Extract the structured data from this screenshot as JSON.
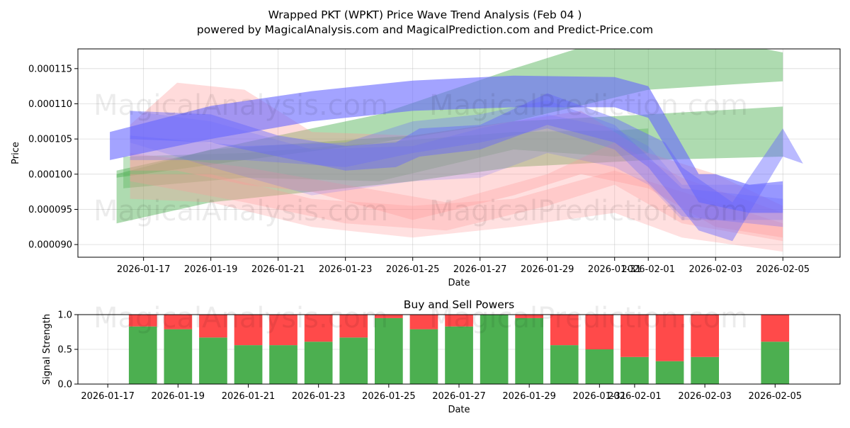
{
  "title_line1": "Wrapped PKT (WPKT) Price Wave Trend Analysis (Feb 04 )",
  "title_line2": "powered by MagicalAnalysis.com and MagicalPrediction.com and Predict-Price.com",
  "watermarks": [
    "MagicalAnalysis.com",
    "MagicalPrediction.com",
    "MagicalAnalysis.com",
    "MagicalPrediction.com",
    "MagicalAnalysis.com",
    "MagicalPrediction.com"
  ],
  "colors": {
    "green": "#4caf50",
    "red": "#ff4a4a",
    "blue": "#6666ff",
    "pink": "#ff9999",
    "grid": "#b0b0b0"
  },
  "chart_data": [
    {
      "type": "area",
      "title": "",
      "xlabel": "Date",
      "ylabel": "Price",
      "x_ticks": [
        "2026-01-17",
        "2026-01-19",
        "2026-01-21",
        "2026-01-23",
        "2026-01-25",
        "2026-01-27",
        "2026-01-29",
        "2026-01-31",
        "2026-02-01",
        "2026-02-03",
        "2026-02-05"
      ],
      "x_tick_days": [
        1,
        3,
        5,
        7,
        9,
        11,
        13,
        15,
        16,
        18,
        20
      ],
      "xlim_days": [
        -0.95,
        21.7
      ],
      "y_ticks": [
        "0.000090",
        "0.000095",
        "0.000100",
        "0.000105",
        "0.000110",
        "0.000115"
      ],
      "y_tick_values": [
        9e-05,
        9.5e-05,
        0.0001,
        0.000105,
        0.00011,
        0.000115
      ],
      "ylim": [
        8.82e-05,
        0.0001178
      ],
      "bands": [
        {
          "color": "green",
          "opacity": 0.45,
          "upper": [
            [
              0.2,
              0.0001005
            ],
            [
              4,
              0.0001045
            ],
            [
              8,
              0.0001085
            ],
            [
              12,
              0.000115
            ],
            [
              16,
              0.000121
            ],
            [
              20,
              0.0001173
            ]
          ],
          "lower": [
            [
              20,
              0.0001132
            ],
            [
              16,
              0.000112
            ],
            [
              12,
              0.0001075
            ],
            [
              8,
              0.0001045
            ],
            [
              4,
              0.000102
            ],
            [
              0.2,
              9.95e-05
            ]
          ]
        },
        {
          "color": "green",
          "opacity": 0.45,
          "upper": [
            [
              0.2,
              0.0001
            ],
            [
              3,
              0.0001035
            ],
            [
              6,
              0.0001045
            ],
            [
              9,
              0.0001055
            ],
            [
              12,
              0.0001075
            ],
            [
              16,
              0.0001085
            ],
            [
              20,
              0.0001096
            ]
          ],
          "lower": [
            [
              20,
              0.0001025
            ],
            [
              16,
              0.000102
            ],
            [
              12,
              0.000101
            ],
            [
              9,
              9.9e-05
            ],
            [
              6,
              9.75e-05
            ],
            [
              3,
              9.6e-05
            ],
            [
              0.2,
              9.3e-05
            ]
          ]
        },
        {
          "color": "green",
          "opacity": 0.35,
          "upper": [
            [
              0.4,
              0.0001025
            ],
            [
              4,
              0.000103
            ],
            [
              8,
              0.0001045
            ],
            [
              12,
              0.000106
            ],
            [
              15,
              0.0001062
            ],
            [
              16,
              0.0001065
            ]
          ],
          "lower": [
            [
              16,
              0.000103
            ],
            [
              15,
              0.0001025
            ],
            [
              12,
              0.0001035
            ],
            [
              8,
              9.9e-05
            ],
            [
              4,
              9.95e-05
            ],
            [
              0.4,
              9.8e-05
            ]
          ]
        },
        {
          "color": "pink",
          "opacity": 0.35,
          "upper": [
            [
              0.6,
              0.000107
            ],
            [
              2,
              0.000113
            ],
            [
              4,
              0.000112
            ],
            [
              6,
              0.000106
            ],
            [
              9,
              0.0001055
            ],
            [
              12,
              0.0001075
            ],
            [
              14,
              0.000109
            ],
            [
              16,
              0.000103
            ],
            [
              18,
              0.0001
            ],
            [
              20,
              9.55e-05
            ]
          ],
          "lower": [
            [
              20,
              9.1e-05
            ],
            [
              18,
              9.25e-05
            ],
            [
              16,
              9.8e-05
            ],
            [
              14,
              0.0001
            ],
            [
              12,
              9.7e-05
            ],
            [
              9,
              9.35e-05
            ],
            [
              6,
              9.75e-05
            ],
            [
              4,
              9.85e-05
            ],
            [
              2,
              0.0001005
            ],
            [
              0.6,
              0.0001005
            ]
          ]
        },
        {
          "color": "pink",
          "opacity": 0.3,
          "upper": [
            [
              0.6,
              0.0001
            ],
            [
              3,
              0.0001
            ],
            [
              6,
              9.65e-05
            ],
            [
              9,
              9.55e-05
            ],
            [
              12,
              9.65e-05
            ],
            [
              15,
              0.0001005
            ],
            [
              17,
              9.75e-05
            ],
            [
              20,
              9.3e-05
            ]
          ],
          "lower": [
            [
              20,
              8.9e-05
            ],
            [
              17,
              9.1e-05
            ],
            [
              15,
              9.45e-05
            ],
            [
              12,
              9.25e-05
            ],
            [
              9,
              9.1e-05
            ],
            [
              6,
              9.25e-05
            ],
            [
              3,
              9.6e-05
            ],
            [
              0.6,
              9.65e-05
            ]
          ]
        },
        {
          "color": "pink",
          "opacity": 0.3,
          "upper": [
            [
              0.6,
              0.000103
            ],
            [
              4,
              0.000101
            ],
            [
              7,
              9.85e-05
            ],
            [
              10,
              9.6e-05
            ],
            [
              13,
              0.0001
            ],
            [
              15,
              0.0001045
            ],
            [
              17,
              9.95e-05
            ],
            [
              20,
              9.45e-05
            ]
          ],
          "lower": [
            [
              20,
              9.05e-05
            ],
            [
              17,
              9.3e-05
            ],
            [
              15,
              9.85e-05
            ],
            [
              13,
              9.55e-05
            ],
            [
              10,
              9.2e-05
            ],
            [
              7,
              9.3e-05
            ],
            [
              4,
              9.6e-05
            ],
            [
              0.6,
              9.9e-05
            ]
          ]
        },
        {
          "color": "blue",
          "opacity": 0.2,
          "upper": [
            [
              0.6,
              0.000109
            ],
            [
              3,
              0.0001075
            ],
            [
              6,
              0.0001035
            ],
            [
              9,
              0.000104
            ],
            [
              11,
              0.0001065
            ],
            [
              13,
              0.0001085
            ],
            [
              15,
              0.0001065
            ],
            [
              16,
              0.000104
            ],
            [
              17,
              9.85e-05
            ],
            [
              20,
              9.85e-05
            ]
          ],
          "lower": [
            [
              20,
              9.35e-05
            ],
            [
              17,
              9.35e-05
            ],
            [
              16,
              9.85e-05
            ],
            [
              15,
              0.000101
            ],
            [
              13,
              0.000103
            ],
            [
              11,
              9.95e-05
            ],
            [
              9,
              9.9e-05
            ],
            [
              6,
              9.7e-05
            ],
            [
              3,
              0.000101
            ],
            [
              0.6,
              0.0001045
            ]
          ]
        },
        {
          "color": "blue",
          "opacity": 0.3,
          "upper": [
            [
              0.6,
              0.0001055
            ],
            [
              4,
              0.000104
            ],
            [
              7,
              0.0001045
            ],
            [
              9,
              0.0001075
            ],
            [
              11,
              0.0001085
            ],
            [
              13,
              0.0001105
            ],
            [
              15,
              0.000107
            ],
            [
              17,
              9.8e-05
            ],
            [
              19,
              9.7e-05
            ],
            [
              20,
              9.65e-05
            ]
          ],
          "lower": [
            [
              20,
              9.25e-05
            ],
            [
              19,
              9.3e-05
            ],
            [
              17,
              9.4e-05
            ],
            [
              15,
              0.0001035
            ],
            [
              13,
              0.0001065
            ],
            [
              11,
              0.0001045
            ],
            [
              9,
              0.000103
            ],
            [
              7,
              0.000101
            ],
            [
              4,
              0.000102
            ],
            [
              0.6,
              0.000102
            ]
          ]
        },
        {
          "color": "blue",
          "opacity": 0.45,
          "upper": [
            [
              0.6,
              0.000109
            ],
            [
              3,
              0.0001085
            ],
            [
              5,
              0.0001055
            ],
            [
              7,
              0.000104
            ],
            [
              8.5,
              0.0001045
            ],
            [
              9.2,
              0.0001065
            ],
            [
              11,
              0.000107
            ],
            [
              13,
              0.0001115
            ],
            [
              15,
              0.000108
            ],
            [
              16.5,
              0.0001045
            ],
            [
              17,
              0.000101
            ],
            [
              18.5,
              9.6e-05
            ],
            [
              20,
              0.0001065
            ],
            [
              20.6,
              0.0001015
            ]
          ],
          "lower": [
            [
              20.6,
              0.0001015
            ],
            [
              20,
              0.0001025
            ],
            [
              18.5,
              9.05e-05
            ],
            [
              17.5,
              9.2e-05
            ],
            [
              16,
              0.000101
            ],
            [
              15,
              0.0001045
            ],
            [
              13,
              0.000107
            ],
            [
              11,
              0.0001035
            ],
            [
              9.2,
              0.0001025
            ],
            [
              8.5,
              0.000101
            ],
            [
              7,
              0.0001005
            ],
            [
              5,
              0.0001025
            ],
            [
              3,
              0.0001045
            ],
            [
              0.6,
              0.000105
            ]
          ]
        },
        {
          "color": "blue",
          "opacity": 0.6,
          "upper": [
            [
              0,
              0.000106
            ],
            [
              3,
              0.0001097
            ],
            [
              6,
              0.0001118
            ],
            [
              9,
              0.0001133
            ],
            [
              12,
              0.000114
            ],
            [
              15,
              0.0001138
            ],
            [
              16,
              0.0001125
            ],
            [
              17.5,
              0.0001
            ],
            [
              18,
              0.0001
            ],
            [
              19,
              9.85e-05
            ],
            [
              20,
              9.9e-05
            ]
          ],
          "lower": [
            [
              20,
              9.45e-05
            ],
            [
              19,
              9.45e-05
            ],
            [
              18,
              9.55e-05
            ],
            [
              17.5,
              9.6e-05
            ],
            [
              16,
              0.000108
            ],
            [
              15,
              0.0001095
            ],
            [
              12,
              0.0001095
            ],
            [
              9,
              0.000109
            ],
            [
              6,
              0.0001075
            ],
            [
              3,
              0.000105
            ],
            [
              0,
              0.000102
            ]
          ]
        }
      ]
    },
    {
      "type": "bar",
      "title": "Buy and Sell Powers",
      "xlabel": "Date",
      "ylabel": "Signal Strength",
      "x_ticks": [
        "2026-01-17",
        "2026-01-19",
        "2026-01-21",
        "2026-01-23",
        "2026-01-25",
        "2026-01-27",
        "2026-01-29",
        "2026-01-31",
        "2026-02-01",
        "2026-02-03",
        "2026-02-05"
      ],
      "x_tick_days": [
        0,
        2,
        4,
        6,
        8,
        10,
        12,
        14,
        15,
        17,
        19
      ],
      "xlim_days": [
        -0.85,
        20.85
      ],
      "y_ticks": [
        "0.0",
        "0.5",
        "1.0"
      ],
      "y_tick_values": [
        0,
        0.5,
        1
      ],
      "ylim": [
        0,
        1
      ],
      "categories": [
        "2026-01-18",
        "2026-01-19",
        "2026-01-20",
        "2026-01-21",
        "2026-01-22",
        "2026-01-23",
        "2026-01-24",
        "2026-01-25",
        "2026-01-26",
        "2026-01-27",
        "2026-01-28",
        "2026-01-29",
        "2026-01-30",
        "2026-01-31",
        "2026-02-01",
        "2026-02-02",
        "2026-02-03",
        "2026-02-05"
      ],
      "category_days": [
        1,
        2,
        3,
        4,
        5,
        6,
        7,
        8,
        9,
        10,
        11,
        12,
        13,
        14,
        15,
        16,
        17,
        19
      ],
      "series": [
        {
          "name": "Buy",
          "color": "#4caf50",
          "values": [
            0.83,
            0.79,
            0.67,
            0.56,
            0.56,
            0.61,
            0.67,
            0.95,
            0.79,
            0.83,
            1.0,
            0.95,
            0.56,
            0.5,
            0.39,
            0.33,
            0.39,
            0.61
          ]
        },
        {
          "name": "Sell",
          "color": "#ff4a4a",
          "values": [
            0.17,
            0.21,
            0.33,
            0.44,
            0.44,
            0.39,
            0.33,
            0.05,
            0.21,
            0.17,
            0.0,
            0.05,
            0.44,
            0.5,
            0.61,
            0.67,
            0.61,
            0.39
          ]
        }
      ]
    }
  ]
}
